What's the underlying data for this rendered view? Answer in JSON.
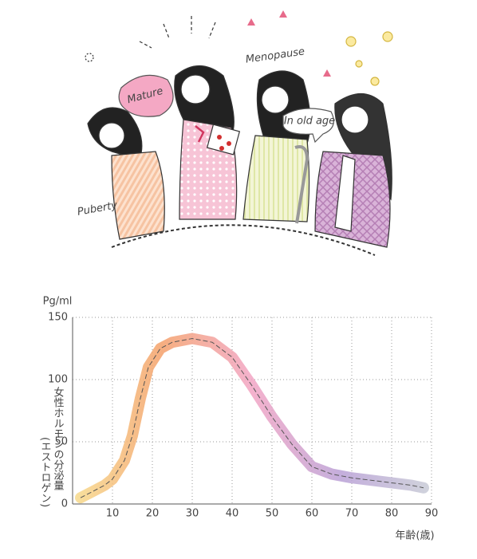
{
  "illustration_labels": [
    "Mature",
    "Menopause",
    "In old age",
    "Puberty"
  ],
  "chart_data": {
    "type": "line",
    "yunit": "Pg/ml",
    "ylabel": "女性ホルモンの分泌量",
    "ylabel_sub": "(エストロゲン)",
    "xlabel": "年齢(歳)",
    "x": [
      2,
      5,
      8,
      10,
      13,
      15,
      17,
      19,
      22,
      25,
      30,
      35,
      40,
      45,
      50,
      55,
      60,
      65,
      70,
      75,
      80,
      85,
      88
    ],
    "values": [
      5,
      10,
      15,
      20,
      35,
      55,
      85,
      110,
      125,
      130,
      133,
      130,
      118,
      95,
      70,
      48,
      30,
      24,
      21,
      19,
      17,
      15,
      13
    ],
    "color_stops": [
      "#f7dc8c",
      "#f4a06a",
      "#f2a4c4",
      "#b9a0d6",
      "#c8ccd6"
    ],
    "xlim": [
      0,
      90
    ],
    "xticks": [
      10,
      20,
      30,
      40,
      50,
      60,
      70,
      80,
      90
    ],
    "ylim": [
      0,
      150
    ],
    "yticks": [
      0,
      50,
      100,
      150
    ],
    "grid": true
  }
}
